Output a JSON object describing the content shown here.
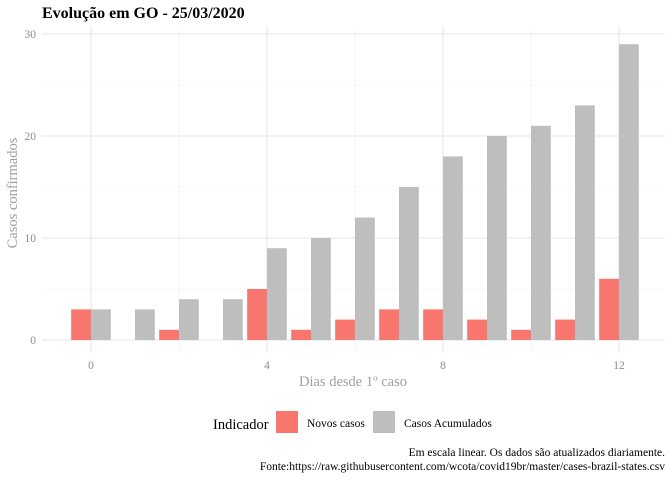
{
  "chart_data": {
    "type": "bar",
    "title": "Evolução em GO  -  25/03/2020",
    "xlabel": "Dias desde 1º caso",
    "ylabel": "Casos confirmados",
    "x": [
      0,
      1,
      2,
      3,
      4,
      5,
      6,
      7,
      8,
      9,
      10,
      11,
      12
    ],
    "xticks": [
      0,
      4,
      8,
      12
    ],
    "yticks": [
      0,
      10,
      20,
      30
    ],
    "xlim": [
      -0.5,
      12.5
    ],
    "ylim": [
      0,
      30
    ],
    "grid": true,
    "legend": {
      "title": "Indicador",
      "position": "bottom"
    },
    "series": [
      {
        "name": "Novos casos",
        "color": "#F8766D",
        "values": [
          3,
          0,
          1,
          0,
          5,
          1,
          2,
          3,
          3,
          2,
          1,
          2,
          6
        ]
      },
      {
        "name": "Casos Acumulados",
        "color": "#BEBEBE",
        "values": [
          3,
          3,
          4,
          4,
          9,
          10,
          12,
          15,
          18,
          20,
          21,
          23,
          29
        ]
      }
    ],
    "caption": [
      "Em escala linear. Os dados são atualizados diariamente.",
      "Fonte:https://raw.githubusercontent.com/wcota/covid19br/master/cases-brazil-states.csv"
    ]
  }
}
